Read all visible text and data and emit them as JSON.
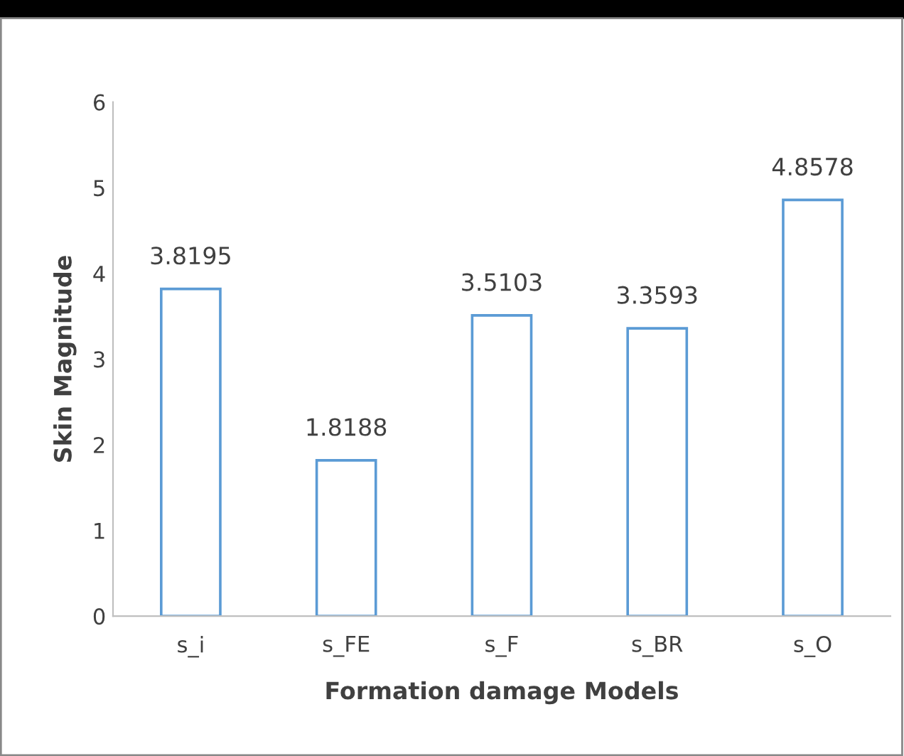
{
  "chart_data": {
    "type": "bar",
    "xlabel": "Formation damage Models",
    "ylabel": "Skin Magnitude",
    "categories": [
      "s_i",
      "s_FE",
      "s_F",
      "s_BR",
      "s_O"
    ],
    "values": [
      3.8195,
      1.8188,
      3.5103,
      3.3593,
      4.8578
    ],
    "color": "#5b9bd5",
    "ylim": [
      0,
      6
    ],
    "yticks": [
      0,
      1,
      2,
      3,
      4,
      5,
      6
    ],
    "grid": false,
    "data_labels": true
  }
}
